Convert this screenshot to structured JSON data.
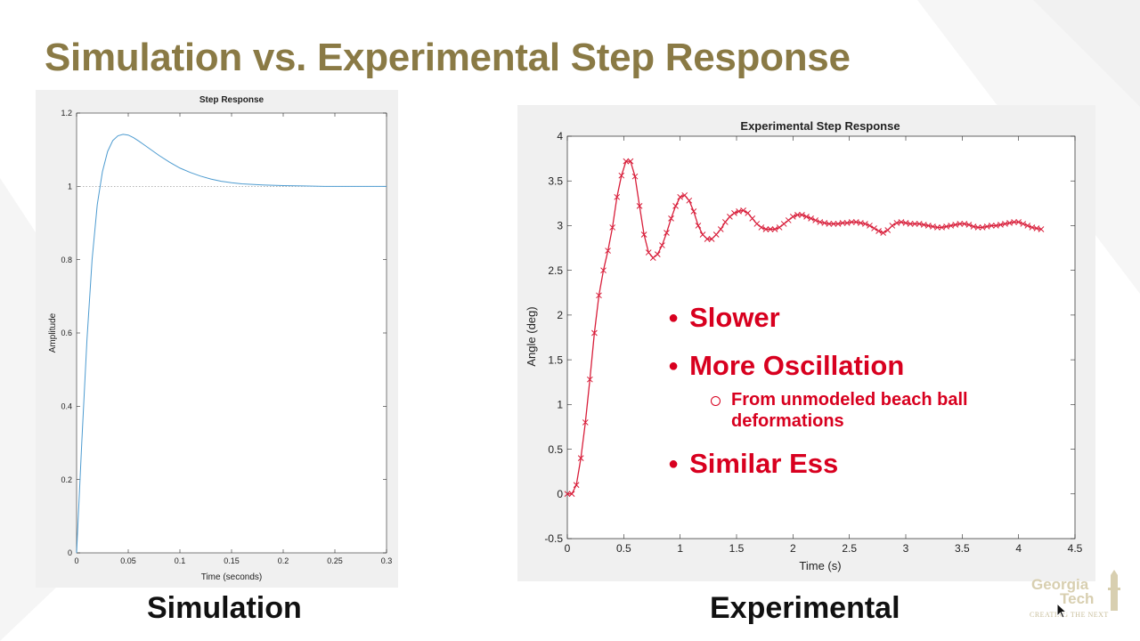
{
  "slide": {
    "title": "Simulation vs. Experimental Step Response",
    "title_color": "#8a7a45",
    "captions": {
      "simulation": "Simulation",
      "experimental": "Experimental"
    },
    "bullets": [
      "Slower",
      "More Oscillation",
      "Similar Ess"
    ],
    "sub_bullet": "From unmodeled beach ball deformations",
    "bullet_color": "#d8001f",
    "logo": {
      "line1": "Georgia",
      "line2": "Tech",
      "tagline": "CREATING THE NEXT"
    }
  },
  "chart_data": [
    {
      "id": "simulation",
      "type": "line",
      "title": "Step Response",
      "xlabel": "Time (seconds)",
      "ylabel": "Amplitude",
      "xlim": [
        0,
        0.3
      ],
      "ylim": [
        0,
        1.2
      ],
      "xticks": [
        0,
        0.05,
        0.1,
        0.15,
        0.2,
        0.25,
        0.3
      ],
      "xtick_labels": [
        "0",
        "0.05",
        "0.1",
        "0.15",
        "0.2",
        "0.25",
        "0.3"
      ],
      "yticks": [
        0,
        0.2,
        0.4,
        0.6,
        0.8,
        1,
        1.2
      ],
      "ytick_labels": [
        "0",
        "0.2",
        "0.4",
        "0.6",
        "0.8",
        "1",
        "1.2"
      ],
      "reference_line": 1,
      "grid": false,
      "line_color": "#4d9bd0",
      "x": [
        0,
        0.005,
        0.01,
        0.015,
        0.02,
        0.025,
        0.03,
        0.035,
        0.04,
        0.045,
        0.05,
        0.055,
        0.06,
        0.065,
        0.07,
        0.08,
        0.09,
        0.1,
        0.11,
        0.12,
        0.13,
        0.14,
        0.15,
        0.16,
        0.18,
        0.2,
        0.22,
        0.24,
        0.26,
        0.28,
        0.3
      ],
      "y": [
        0,
        0.3,
        0.58,
        0.8,
        0.95,
        1.04,
        1.095,
        1.125,
        1.138,
        1.142,
        1.14,
        1.133,
        1.124,
        1.114,
        1.104,
        1.084,
        1.066,
        1.05,
        1.038,
        1.028,
        1.02,
        1.014,
        1.01,
        1.007,
        1.004,
        1.002,
        1.001,
        1.0,
        1.0,
        1.0,
        1.0
      ]
    },
    {
      "id": "experimental",
      "type": "line",
      "title": "Experimental Step Response",
      "xlabel": "Time (s)",
      "ylabel": "Angle (deg)",
      "xlim": [
        0,
        4.5
      ],
      "ylim": [
        -0.5,
        4
      ],
      "xticks": [
        0,
        0.5,
        1,
        1.5,
        2,
        2.5,
        3,
        3.5,
        4,
        4.5
      ],
      "xtick_labels": [
        "0",
        "0.5",
        "1",
        "1.5",
        "2",
        "2.5",
        "3",
        "3.5",
        "4",
        "4.5"
      ],
      "yticks": [
        -0.5,
        0,
        0.5,
        1,
        1.5,
        2,
        2.5,
        3,
        3.5,
        4
      ],
      "ytick_labels": [
        "-0.5",
        "0",
        "0.5",
        "1",
        "1.5",
        "2",
        "2.5",
        "3",
        "3.5",
        "4"
      ],
      "grid": false,
      "line_color": "#d81e3a",
      "marker": "x",
      "x": [
        0,
        0.04,
        0.08,
        0.12,
        0.16,
        0.2,
        0.24,
        0.28,
        0.32,
        0.36,
        0.4,
        0.44,
        0.48,
        0.52,
        0.56,
        0.6,
        0.64,
        0.68,
        0.72,
        0.76,
        0.8,
        0.84,
        0.88,
        0.92,
        0.96,
        1.0,
        1.04,
        1.08,
        1.12,
        1.16,
        1.2,
        1.24,
        1.28,
        1.32,
        1.36,
        1.4,
        1.44,
        1.48,
        1.52,
        1.56,
        1.6,
        1.64,
        1.68,
        1.72,
        1.76,
        1.8,
        1.84,
        1.88,
        1.92,
        1.96,
        2.0,
        2.04,
        2.08,
        2.12,
        2.16,
        2.2,
        2.24,
        2.28,
        2.32,
        2.36,
        2.4,
        2.44,
        2.48,
        2.52,
        2.56,
        2.6,
        2.64,
        2.68,
        2.72,
        2.76,
        2.8,
        2.84,
        2.88,
        2.92,
        2.96,
        3.0,
        3.04,
        3.08,
        3.12,
        3.16,
        3.2,
        3.24,
        3.28,
        3.32,
        3.36,
        3.4,
        3.44,
        3.48,
        3.52,
        3.56,
        3.6,
        3.64,
        3.68,
        3.72,
        3.76,
        3.8,
        3.84,
        3.88,
        3.92,
        3.96,
        4.0,
        4.04,
        4.08,
        4.12,
        4.16,
        4.2
      ],
      "y": [
        0,
        0,
        0.1,
        0.4,
        0.8,
        1.28,
        1.8,
        2.22,
        2.5,
        2.72,
        2.98,
        3.32,
        3.56,
        3.72,
        3.72,
        3.55,
        3.22,
        2.9,
        2.7,
        2.64,
        2.68,
        2.78,
        2.92,
        3.08,
        3.22,
        3.32,
        3.34,
        3.28,
        3.16,
        3.0,
        2.9,
        2.85,
        2.85,
        2.9,
        2.96,
        3.04,
        3.1,
        3.14,
        3.16,
        3.17,
        3.14,
        3.08,
        3.02,
        2.98,
        2.96,
        2.96,
        2.96,
        2.98,
        3.02,
        3.06,
        3.1,
        3.12,
        3.12,
        3.1,
        3.08,
        3.06,
        3.04,
        3.03,
        3.02,
        3.02,
        3.02,
        3.03,
        3.03,
        3.04,
        3.04,
        3.03,
        3.02,
        3.0,
        2.97,
        2.94,
        2.92,
        2.95,
        3.0,
        3.03,
        3.04,
        3.03,
        3.02,
        3.02,
        3.02,
        3.01,
        3.0,
        2.99,
        2.98,
        2.98,
        2.99,
        3.0,
        3.01,
        3.02,
        3.02,
        3.01,
        2.99,
        2.98,
        2.98,
        2.99,
        3.0,
        3.0,
        3.01,
        3.02,
        3.03,
        3.04,
        3.04,
        3.02,
        3.0,
        2.98,
        2.97,
        2.96
      ]
    }
  ]
}
